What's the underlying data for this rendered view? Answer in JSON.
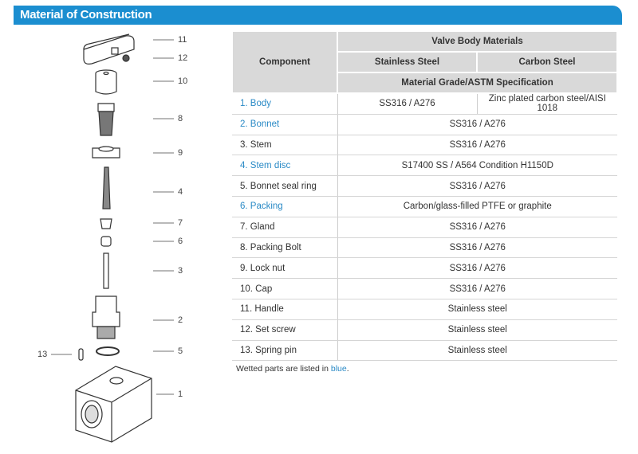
{
  "title": "Material of Construction",
  "diagram": {
    "callouts": [
      "11",
      "12",
      "10",
      "8",
      "9",
      "4",
      "7",
      "6",
      "3",
      "2",
      "5",
      "13",
      "1"
    ]
  },
  "table": {
    "headers": {
      "component": "Component",
      "group": "Valve Body Materials",
      "stainless": "Stainless Steel",
      "carbon": "Carbon Steel",
      "spec": "Material Grade/ASTM Specification"
    },
    "rows": [
      {
        "component": "1. Body",
        "wetted": true,
        "stainless": "SS316 / A276",
        "carbon": "Zinc plated carbon steel/AISI 1018"
      },
      {
        "component": "2. Bonnet",
        "wetted": true,
        "value": "SS316 / A276"
      },
      {
        "component": "3. Stem",
        "wetted": false,
        "value": "SS316 / A276"
      },
      {
        "component": "4. Stem disc",
        "wetted": true,
        "value": "S17400 SS / A564 Condition H1150D"
      },
      {
        "component": "5. Bonnet seal ring",
        "wetted": false,
        "value": "SS316 / A276"
      },
      {
        "component": "6. Packing",
        "wetted": true,
        "value": "Carbon/glass-filled PTFE or graphite"
      },
      {
        "component": "7. Gland",
        "wetted": false,
        "value": "SS316 / A276"
      },
      {
        "component": "8. Packing Bolt",
        "wetted": false,
        "value": "SS316 / A276"
      },
      {
        "component": "9. Lock nut",
        "wetted": false,
        "value": "SS316 / A276"
      },
      {
        "component": "10. Cap",
        "wetted": false,
        "value": "SS316 / A276"
      },
      {
        "component": "11. Handle",
        "wetted": false,
        "value": "Stainless steel"
      },
      {
        "component": "12. Set screw",
        "wetted": false,
        "value": "Stainless steel"
      },
      {
        "component": "13. Spring pin",
        "wetted": false,
        "value": "Stainless steel"
      }
    ]
  },
  "note": {
    "prefix": "Wetted parts are listed in ",
    "highlight": "blue",
    "suffix": "."
  },
  "colors": {
    "accent": "#1b8ed0",
    "wetted": "#2a8ac6",
    "header_bg": "#d9d9d9"
  }
}
